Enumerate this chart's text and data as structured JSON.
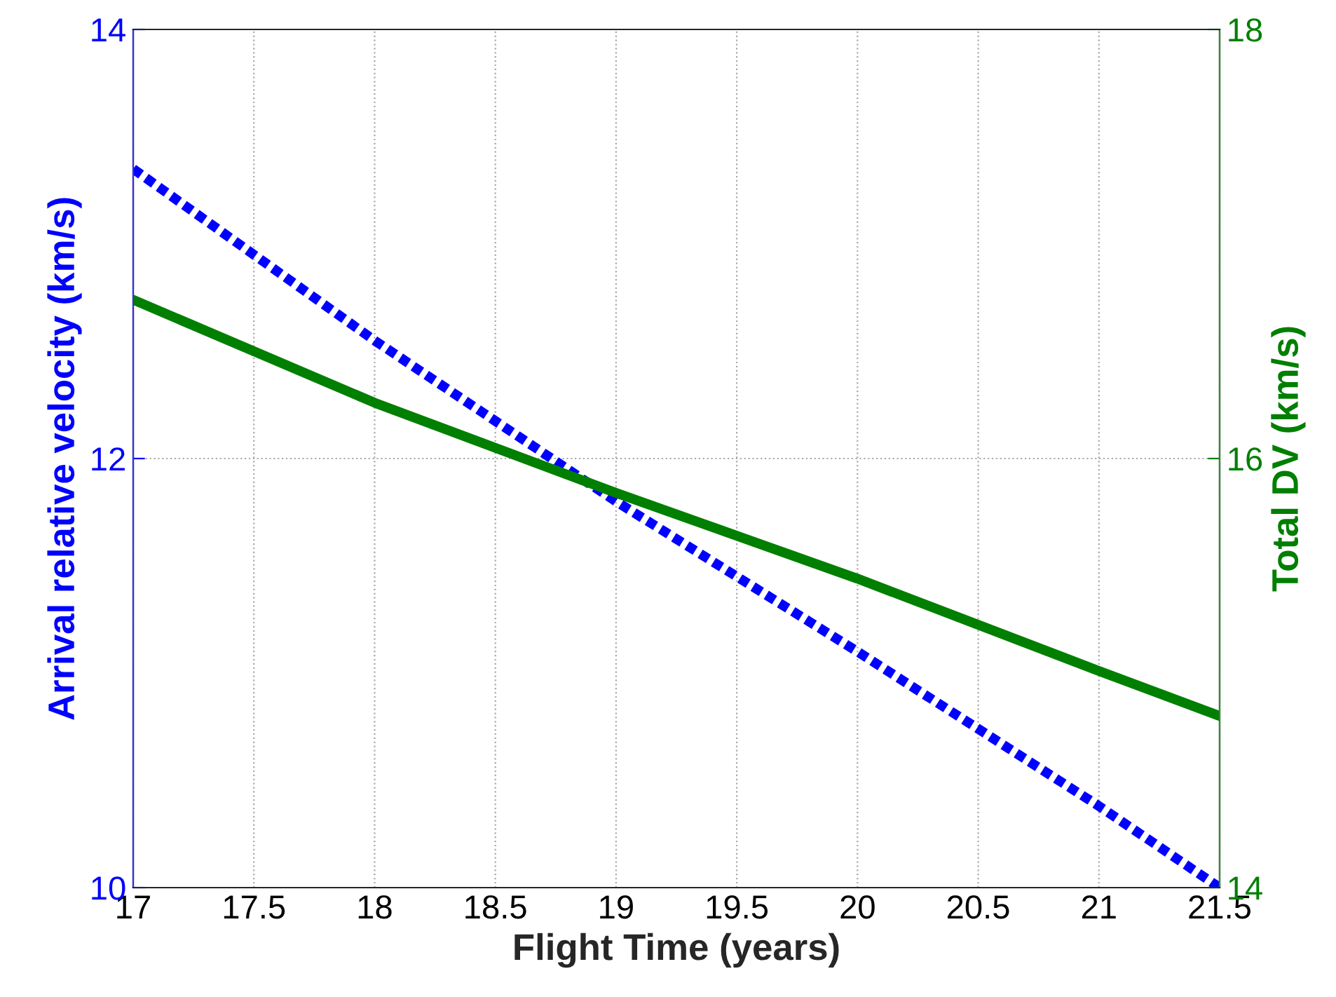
{
  "chart_data": {
    "type": "line",
    "xlabel": "Flight Time (years)",
    "ylabel": "Arrival relative velocity (km/s)",
    "y2label": "Total DV (km/s)",
    "x": [
      17,
      18,
      19,
      20,
      21,
      21.5
    ],
    "series": [
      {
        "color": "#0000ff",
        "values": [
          13.35,
          12.55,
          11.8,
          11.1,
          10.38,
          10.0
        ],
        "line_style": "dotted"
      },
      {
        "color": "#007f00",
        "values": [
          16.74,
          16.26,
          15.84,
          15.44,
          15.01,
          14.8
        ],
        "axis": "y2",
        "line_style": "solid"
      }
    ],
    "xlim": [
      17,
      21.5
    ],
    "xticks": [
      17,
      17.5,
      18,
      18.5,
      19,
      19.5,
      20,
      20.5,
      21,
      21.5
    ],
    "ylim": [
      10,
      14
    ],
    "yticks": [
      10,
      12,
      14
    ],
    "y2lim": [
      14,
      18
    ],
    "y2ticks": [
      14,
      16,
      18
    ],
    "grid": true,
    "marker": "none"
  }
}
